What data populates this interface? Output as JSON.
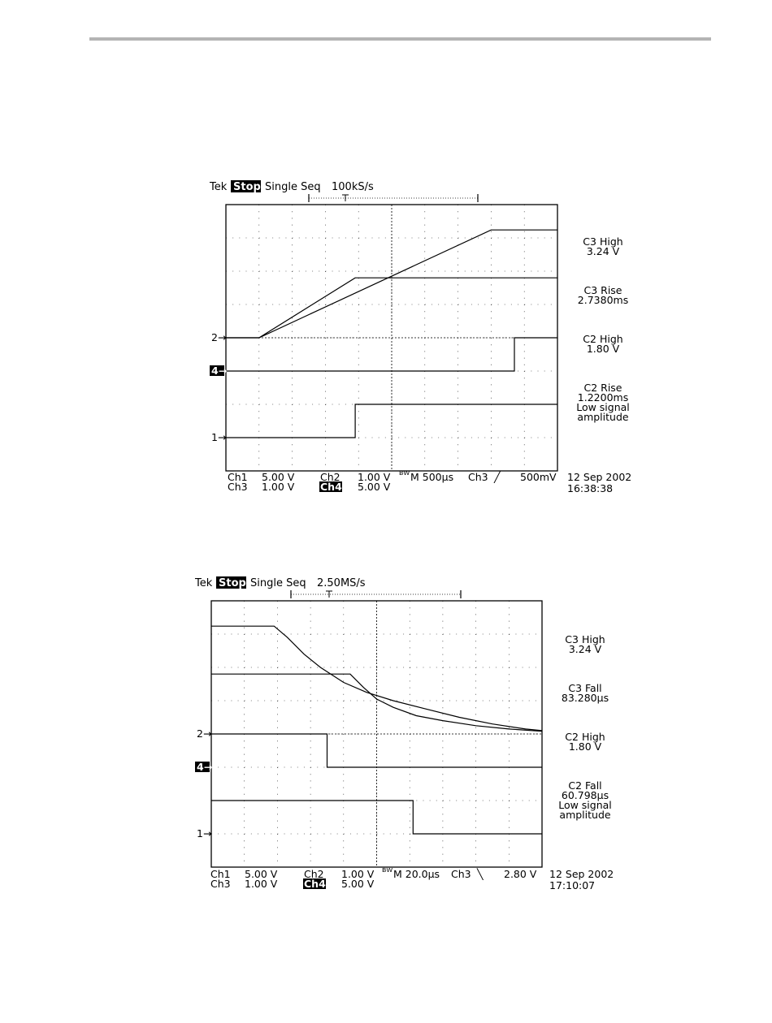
{
  "scopes": [
    {
      "header": {
        "brand": "Tek",
        "state": "Stop:",
        "mode": "Single Seq",
        "rate": "100kS/s"
      },
      "readouts": [
        {
          "l1": "C3 High",
          "l2": "3.24 V"
        },
        {
          "l1": "C3 Rise",
          "l2": "2.7380ms"
        },
        {
          "l1": "C2 High",
          "l2": "1.80 V"
        },
        {
          "l1": "C2 Rise",
          "l2": "1.2200ms",
          "l3": "Low signal",
          "l4": "amplitude"
        }
      ],
      "footer": {
        "ch1": "Ch1",
        "ch1_scale": "5.00 V",
        "ch2": "Ch2",
        "ch2_scale": "1.00 V",
        "timebase": "M 500µs",
        "trig_src": "Ch3",
        "trig_level": "500mV",
        "ch3": "Ch3",
        "ch3_scale": "1.00 V",
        "ch4": "Ch4",
        "ch4_scale": "5.00 V",
        "date": "12 Sep 2002",
        "time": "16:38:38"
      },
      "markers": [
        "2",
        "4",
        "1"
      ]
    },
    {
      "header": {
        "brand": "Tek",
        "state": "Stop:",
        "mode": "Single Seq",
        "rate": "2.50MS/s"
      },
      "readouts": [
        {
          "l1": "C3 High",
          "l2": "3.24 V"
        },
        {
          "l1": "C3 Fall",
          "l2": "83.280µs"
        },
        {
          "l1": "C2 High",
          "l2": "1.80 V"
        },
        {
          "l1": "C2 Fall",
          "l2": "60.798µs",
          "l3": "Low signal",
          "l4": "amplitude"
        }
      ],
      "footer": {
        "ch1": "Ch1",
        "ch1_scale": "5.00 V",
        "ch2": "Ch2",
        "ch2_scale": "1.00 V",
        "timebase": "M 20.0µs",
        "trig_src": "Ch3",
        "trig_level": "2.80 V",
        "ch3": "Ch3",
        "ch3_scale": "1.00 V",
        "ch4": "Ch4",
        "ch4_scale": "5.00 V",
        "date": "12 Sep 2002",
        "time": "17:10:07"
      },
      "markers": [
        "2",
        "4",
        "1"
      ]
    }
  ],
  "chart_data": [
    {
      "type": "line",
      "x_units": "divisions",
      "y_units": "divisions",
      "grid": true,
      "xlim": [
        0,
        10
      ],
      "ylim": [
        0,
        8
      ],
      "series": [
        {
          "name": "C3",
          "color": "#000000",
          "points": [
            [
              0,
              4
            ],
            [
              1,
              4
            ],
            [
              8,
              7.24
            ],
            [
              10,
              7.24
            ]
          ]
        },
        {
          "name": "C2",
          "color": "#000000",
          "points": [
            [
              0,
              4
            ],
            [
              1,
              4
            ],
            [
              3.9,
              5.8
            ],
            [
              10,
              5.8
            ]
          ]
        },
        {
          "name": "Ch4",
          "color": "#000000",
          "points": [
            [
              0,
              3
            ],
            [
              8.7,
              3
            ],
            [
              8.7,
              4
            ],
            [
              10,
              4
            ]
          ]
        },
        {
          "name": "Ch1",
          "color": "#000000",
          "points": [
            [
              0,
              1
            ],
            [
              3.9,
              1
            ],
            [
              3.9,
              2
            ],
            [
              10,
              2
            ]
          ]
        }
      ]
    },
    {
      "type": "line",
      "x_units": "divisions",
      "y_units": "divisions",
      "grid": true,
      "xlim": [
        0,
        10
      ],
      "ylim": [
        0,
        8
      ],
      "series": [
        {
          "name": "C3",
          "color": "#000000",
          "points": [
            [
              0,
              7.24
            ],
            [
              1.9,
              7.24
            ],
            [
              2.3,
              6.9
            ],
            [
              2.8,
              6.4
            ],
            [
              3.3,
              6.0
            ],
            [
              4.0,
              5.55
            ],
            [
              4.7,
              5.25
            ],
            [
              5.5,
              5.0
            ],
            [
              6.5,
              4.75
            ],
            [
              7.5,
              4.5
            ],
            [
              8.5,
              4.3
            ],
            [
              9.5,
              4.15
            ],
            [
              10,
              4.1
            ]
          ]
        },
        {
          "name": "C2",
          "color": "#000000",
          "points": [
            [
              0,
              5.8
            ],
            [
              4.2,
              5.8
            ],
            [
              4.6,
              5.4
            ],
            [
              5.0,
              5.05
            ],
            [
              5.5,
              4.8
            ],
            [
              6.2,
              4.55
            ],
            [
              7.0,
              4.4
            ],
            [
              8.0,
              4.25
            ],
            [
              9.0,
              4.15
            ],
            [
              10,
              4.08
            ]
          ]
        },
        {
          "name": "Ch4",
          "color": "#000000",
          "points": [
            [
              0,
              4
            ],
            [
              3.5,
              4
            ],
            [
              3.5,
              3
            ],
            [
              10,
              3
            ]
          ]
        },
        {
          "name": "Ch1",
          "color": "#000000",
          "points": [
            [
              0,
              2
            ],
            [
              6.1,
              2
            ],
            [
              6.1,
              1
            ],
            [
              10,
              1
            ]
          ]
        }
      ]
    }
  ]
}
